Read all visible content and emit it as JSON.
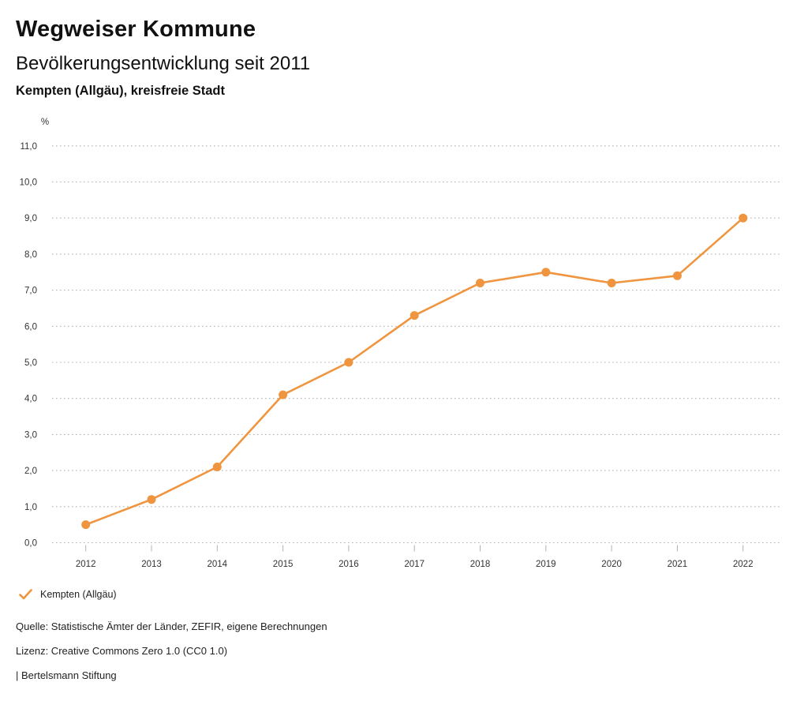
{
  "header": {
    "title": "Wegweiser Kommune",
    "subtitle": "Bevölkerungsentwicklung seit 2011",
    "region": "Kempten (Allgäu), kreisfreie Stadt"
  },
  "chart_data": {
    "type": "line",
    "title": "Bevölkerungsentwicklung seit 2011",
    "x": [
      2012,
      2013,
      2014,
      2015,
      2016,
      2017,
      2018,
      2019,
      2020,
      2021,
      2022
    ],
    "series": [
      {
        "name": "Kempten (Allgäu)",
        "values": [
          0.5,
          1.2,
          2.1,
          4.1,
          5.0,
          6.3,
          7.2,
          7.5,
          7.2,
          7.4,
          9.0
        ]
      }
    ],
    "xlabel": "",
    "ylabel": "%",
    "ylim": [
      0,
      11
    ],
    "ytick_step": 1,
    "ytick_decimal_separator": ",",
    "grid": "dotted-horizontal",
    "legend_position": "bottom-left",
    "line_color": "#F0953F",
    "marker": "circle"
  },
  "legend": {
    "marker_icon": "check-icon",
    "label": "Kempten (Allgäu)",
    "color": "#F0953F"
  },
  "footer": {
    "source": "Quelle: Statistische Ämter der Länder, ZEFIR, eigene Berechnungen",
    "license": "Lizenz: Creative Commons Zero 1.0 (CC0 1.0)",
    "publisher": "| Bertelsmann Stiftung"
  },
  "colors": {
    "accent": "#F0953F",
    "grid": "#b3b3b3",
    "tick": "#b3b3b3",
    "axis_text": "#333333",
    "text": "#222222"
  }
}
